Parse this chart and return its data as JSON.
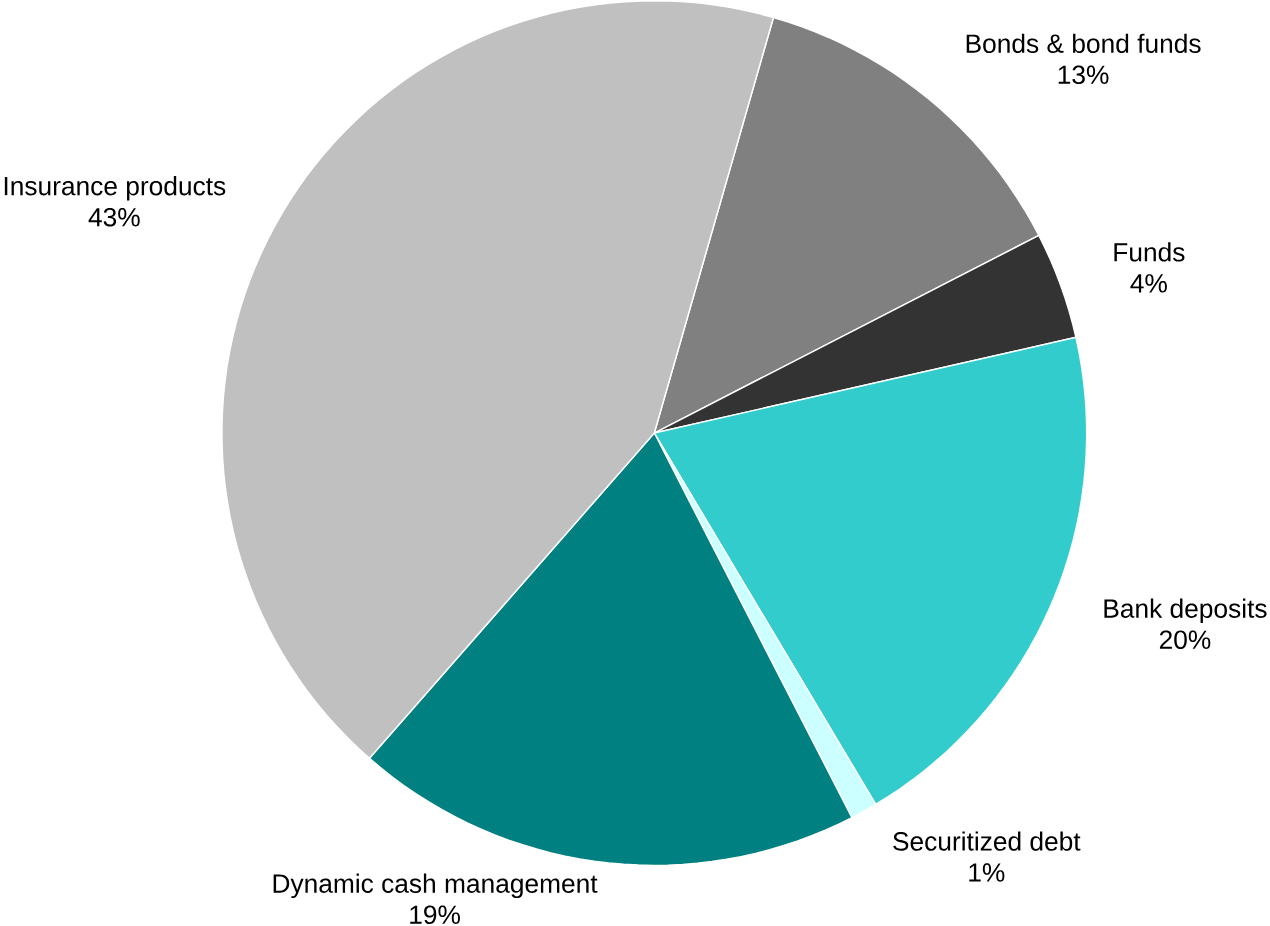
{
  "chart_data": {
    "type": "pie",
    "categories": [
      "Bonds & bond funds",
      "Funds",
      "Bank deposits",
      "Securitized debt",
      "Dynamic cash management",
      "Insurance products"
    ],
    "values": [
      13,
      4,
      20,
      1,
      19,
      43
    ],
    "value_labels": [
      "13%",
      "4%",
      "20%",
      "1%",
      "19%",
      "43%"
    ],
    "colors": [
      "#808080",
      "#333333",
      "#33cccc",
      "#ccffff",
      "#008080",
      "#c0c0c0"
    ]
  }
}
